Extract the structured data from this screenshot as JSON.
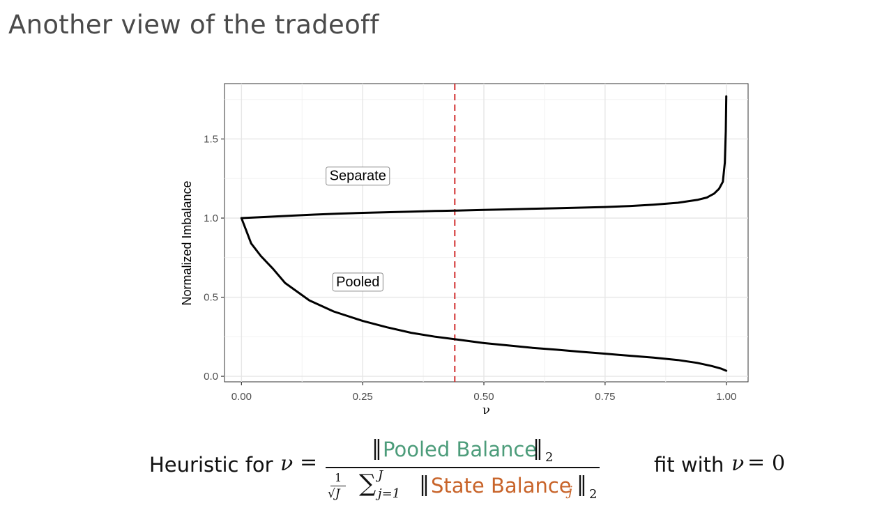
{
  "slide": {
    "title": "Another view of the tradeoff"
  },
  "chart_data": {
    "type": "line",
    "xlabel": "ν",
    "ylabel": "Normalized Imbalance",
    "xlim": [
      -0.035,
      1.045
    ],
    "ylim": [
      -0.035,
      1.85
    ],
    "x_ticks": [
      {
        "value": 0.0,
        "label": "0.00"
      },
      {
        "value": 0.25,
        "label": "0.25"
      },
      {
        "value": 0.5,
        "label": "0.50"
      },
      {
        "value": 0.75,
        "label": "0.75"
      },
      {
        "value": 1.0,
        "label": "1.00"
      }
    ],
    "y_ticks": [
      {
        "value": 0.0,
        "label": "0.0"
      },
      {
        "value": 0.5,
        "label": "0.5"
      },
      {
        "value": 1.0,
        "label": "1.0"
      },
      {
        "value": 1.5,
        "label": "1.5"
      }
    ],
    "grid": true,
    "series": [
      {
        "key": "separate",
        "color": "#000000",
        "points": [
          [
            0.0,
            1.0
          ],
          [
            0.05,
            1.007
          ],
          [
            0.1,
            1.015
          ],
          [
            0.15,
            1.022
          ],
          [
            0.2,
            1.028
          ],
          [
            0.25,
            1.033
          ],
          [
            0.3,
            1.037
          ],
          [
            0.35,
            1.041
          ],
          [
            0.4,
            1.045
          ],
          [
            0.45,
            1.048
          ],
          [
            0.5,
            1.052
          ],
          [
            0.55,
            1.055
          ],
          [
            0.6,
            1.059
          ],
          [
            0.65,
            1.062
          ],
          [
            0.7,
            1.066
          ],
          [
            0.75,
            1.07
          ],
          [
            0.8,
            1.076
          ],
          [
            0.85,
            1.085
          ],
          [
            0.9,
            1.097
          ],
          [
            0.94,
            1.115
          ],
          [
            0.96,
            1.13
          ],
          [
            0.975,
            1.155
          ],
          [
            0.985,
            1.185
          ],
          [
            0.993,
            1.23
          ],
          [
            0.997,
            1.35
          ],
          [
            0.999,
            1.55
          ],
          [
            1.0,
            1.77
          ]
        ]
      },
      {
        "key": "pooled",
        "color": "#000000",
        "points": [
          [
            0.0,
            1.0
          ],
          [
            0.01,
            0.92
          ],
          [
            0.02,
            0.84
          ],
          [
            0.04,
            0.76
          ],
          [
            0.065,
            0.68
          ],
          [
            0.09,
            0.59
          ],
          [
            0.14,
            0.48
          ],
          [
            0.19,
            0.41
          ],
          [
            0.25,
            0.35
          ],
          [
            0.3,
            0.31
          ],
          [
            0.35,
            0.275
          ],
          [
            0.4,
            0.25
          ],
          [
            0.45,
            0.23
          ],
          [
            0.5,
            0.21
          ],
          [
            0.55,
            0.195
          ],
          [
            0.6,
            0.18
          ],
          [
            0.65,
            0.168
          ],
          [
            0.7,
            0.155
          ],
          [
            0.75,
            0.143
          ],
          [
            0.8,
            0.13
          ],
          [
            0.85,
            0.118
          ],
          [
            0.9,
            0.103
          ],
          [
            0.94,
            0.085
          ],
          [
            0.97,
            0.065
          ],
          [
            0.99,
            0.048
          ],
          [
            1.0,
            0.035
          ]
        ]
      }
    ],
    "vline": {
      "x": 0.44,
      "color": "#d12f2f",
      "style": "dashed"
    },
    "annotations": [
      {
        "text": "Separate",
        "x": 0.24,
        "y": 1.27
      },
      {
        "text": "Pooled",
        "x": 0.24,
        "y": 0.6
      }
    ]
  },
  "formula": {
    "lead": "Heuristic for",
    "nu": "ν",
    "eq": "=",
    "numerator": "Pooled Balance",
    "numerator_color": "#4c9c7a",
    "norm_sub": "2",
    "den_frac_num": "1",
    "den_frac_den": "√J",
    "sum_symbol": "∑",
    "sum_upper": "J",
    "sum_lower": "j=1",
    "state_balance": "State Balance",
    "state_sub": "j",
    "state_color": "#c8642a",
    "fit_text": "fit with",
    "fit_zero": "0"
  }
}
